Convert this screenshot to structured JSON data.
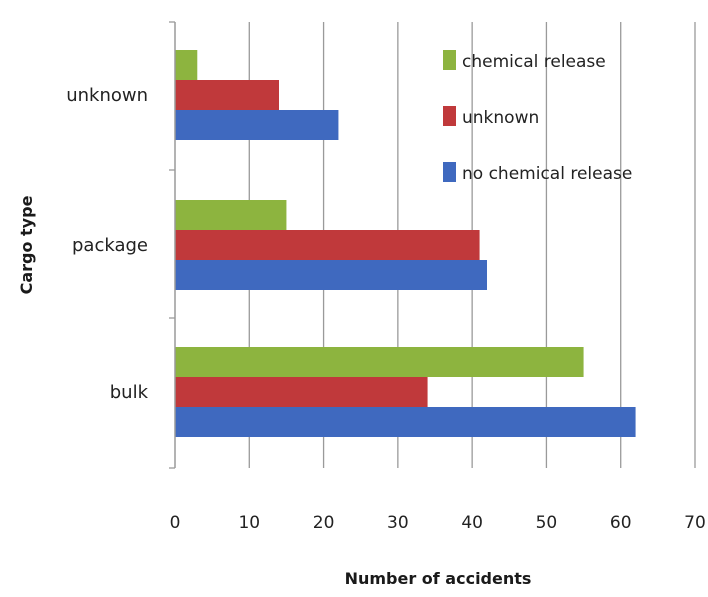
{
  "chart_data": {
    "type": "bar",
    "orientation": "horizontal",
    "categories": [
      "unknown",
      "package",
      "bulk"
    ],
    "series": [
      {
        "name": "chemical release",
        "color": "#8db43f",
        "values": [
          3,
          15,
          55
        ]
      },
      {
        "name": "unknown",
        "color": "#c0393b",
        "values": [
          14,
          41,
          34
        ]
      },
      {
        "name": "no chemical release",
        "color": "#3f69bf",
        "values": [
          22,
          42,
          62
        ]
      }
    ],
    "xlabel": "Number of accidents",
    "ylabel": "Cargo type",
    "xlim": [
      0,
      70
    ],
    "xticks": [
      0,
      10,
      20,
      30,
      40,
      50,
      60,
      70
    ],
    "grid": "vertical",
    "legend_position": "top-right"
  }
}
